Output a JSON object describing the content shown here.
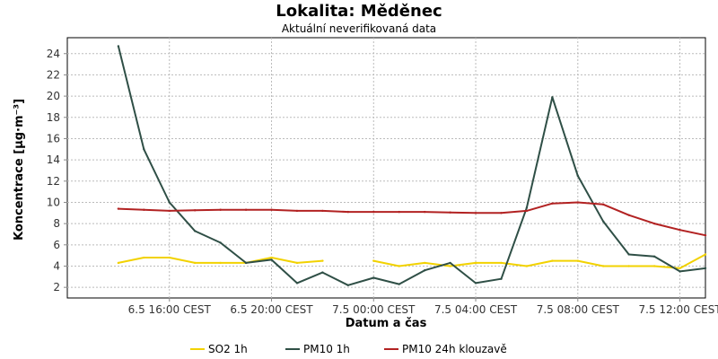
{
  "chart_data": {
    "type": "line",
    "title": "Lokalita: Měděnec",
    "subtitle": "Aktuální neverifikovaná data",
    "xlabel": "Datum a čas",
    "ylabel": "Koncentrace [µg·m⁻³]",
    "ylim": [
      1,
      25.5
    ],
    "yticks": [
      2,
      4,
      6,
      8,
      10,
      12,
      14,
      16,
      18,
      20,
      22,
      24
    ],
    "xlim": [
      12.0,
      37.0
    ],
    "xticks": [
      {
        "x": 16,
        "label": "6.5 16:00 CEST"
      },
      {
        "x": 20,
        "label": "6.5 20:00 CEST"
      },
      {
        "x": 24,
        "label": "7.5 00:00 CEST"
      },
      {
        "x": 28,
        "label": "7.5 04:00 CEST"
      },
      {
        "x": 32,
        "label": "7.5 08:00 CEST"
      },
      {
        "x": 36,
        "label": "7.5 12:00 CEST"
      }
    ],
    "grid": true,
    "legend_position": "bottom",
    "series": [
      {
        "name": "SO2 1h",
        "color": "#f2d200",
        "points": [
          [
            14,
            4.3
          ],
          [
            15,
            4.8
          ],
          [
            16,
            4.8
          ],
          [
            17,
            4.3
          ],
          [
            18,
            4.3
          ],
          [
            19,
            4.3
          ],
          [
            20,
            4.8
          ],
          [
            21,
            4.3
          ],
          [
            22,
            4.5
          ],
          [
            23,
            null
          ],
          [
            24,
            4.5
          ],
          [
            25,
            4.0
          ],
          [
            26,
            4.3
          ],
          [
            27,
            4.0
          ],
          [
            28,
            4.3
          ],
          [
            29,
            4.3
          ],
          [
            30,
            4.0
          ],
          [
            31,
            4.5
          ],
          [
            32,
            4.5
          ],
          [
            33,
            4.0
          ],
          [
            34,
            4.0
          ],
          [
            35,
            4.0
          ],
          [
            36,
            3.8
          ],
          [
            37,
            5.1
          ]
        ]
      },
      {
        "name": "PM10 1h",
        "color": "#2f4f46",
        "points": [
          [
            14,
            24.7
          ],
          [
            15,
            15.0
          ],
          [
            16,
            10.0
          ],
          [
            17,
            7.3
          ],
          [
            18,
            6.2
          ],
          [
            19,
            4.3
          ],
          [
            20,
            4.6
          ],
          [
            21,
            2.4
          ],
          [
            22,
            3.4
          ],
          [
            23,
            2.2
          ],
          [
            24,
            2.9
          ],
          [
            25,
            2.3
          ],
          [
            26,
            3.6
          ],
          [
            27,
            4.3
          ],
          [
            28,
            2.4
          ],
          [
            29,
            2.8
          ],
          [
            30,
            9.5
          ],
          [
            31,
            19.9
          ],
          [
            32,
            12.5
          ],
          [
            33,
            8.2
          ],
          [
            34,
            5.1
          ],
          [
            35,
            4.9
          ],
          [
            36,
            3.5
          ],
          [
            37,
            3.8
          ]
        ]
      },
      {
        "name": "PM10 24h klouzavě",
        "color": "#b22222",
        "points": [
          [
            14,
            9.4
          ],
          [
            15,
            9.3
          ],
          [
            16,
            9.2
          ],
          [
            17,
            9.25
          ],
          [
            18,
            9.3
          ],
          [
            19,
            9.3
          ],
          [
            20,
            9.3
          ],
          [
            21,
            9.2
          ],
          [
            22,
            9.2
          ],
          [
            23,
            9.1
          ],
          [
            24,
            9.1
          ],
          [
            25,
            9.1
          ],
          [
            26,
            9.1
          ],
          [
            27,
            9.05
          ],
          [
            28,
            9.0
          ],
          [
            29,
            9.0
          ],
          [
            30,
            9.2
          ],
          [
            31,
            9.9
          ],
          [
            32,
            10.0
          ],
          [
            33,
            9.8
          ],
          [
            34,
            8.8
          ],
          [
            35,
            8.0
          ],
          [
            36,
            7.4
          ],
          [
            37,
            6.9
          ]
        ]
      }
    ]
  }
}
